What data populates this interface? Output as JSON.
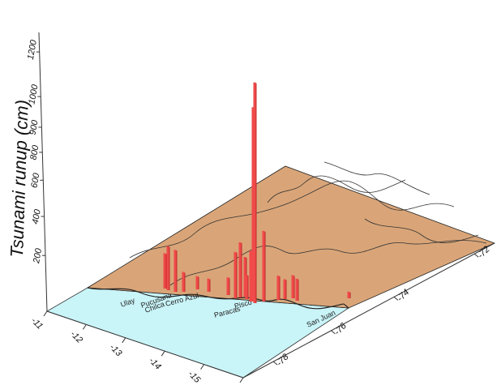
{
  "chart_data": {
    "type": "bar",
    "title": "",
    "zlabel": "Tsunami runup (cm)",
    "zlim": [
      0,
      1200
    ],
    "z_ticks": [
      "200",
      "400",
      "600",
      "800",
      "900",
      "1000",
      "1200"
    ],
    "lat_ticks": [
      "-11",
      "-12",
      "-13",
      "-14",
      "-15",
      "-16"
    ],
    "lon_ticks": [
      "-72",
      "-74",
      "-76",
      "-78"
    ],
    "colors": {
      "land": "#D9A578",
      "sea": "#C9F4F8",
      "bar": "#F04A4A",
      "bar_dark": "#C02828"
    },
    "place_labels": [
      "Ulay",
      "Pucusana",
      "Chilca",
      "Cerro Azul",
      "Pisco",
      "Paracas",
      "San Juan"
    ],
    "bars": [
      {
        "lon": -77.0,
        "lat": -12.0,
        "runup": 160
      },
      {
        "lon": -76.9,
        "lat": -12.2,
        "runup": 200
      },
      {
        "lon": -76.8,
        "lat": -12.4,
        "runup": 190
      },
      {
        "lon": -76.6,
        "lat": -12.6,
        "runup": 90
      },
      {
        "lon": -76.5,
        "lat": -12.9,
        "runup": 60
      },
      {
        "lon": -76.4,
        "lat": -13.1,
        "runup": 60
      },
      {
        "lon": -76.2,
        "lat": -13.5,
        "runup": 80
      },
      {
        "lon": -76.15,
        "lat": -13.65,
        "runup": 210
      },
      {
        "lon": -76.05,
        "lat": -13.8,
        "runup": 250
      },
      {
        "lon": -76.0,
        "lat": -13.85,
        "runup": 180
      },
      {
        "lon": -75.95,
        "lat": -13.95,
        "runup": 110
      },
      {
        "lon": -75.9,
        "lat": -14.0,
        "runup": 230
      },
      {
        "lon": -75.85,
        "lat": -14.05,
        "runup": 880
      },
      {
        "lon": -75.8,
        "lat": -14.1,
        "runup": 1000
      },
      {
        "lon": -75.75,
        "lat": -14.15,
        "runup": 320
      },
      {
        "lon": -75.7,
        "lat": -14.3,
        "runup": 110
      },
      {
        "lon": -75.55,
        "lat": -14.5,
        "runup": 90
      },
      {
        "lon": -75.45,
        "lat": -14.6,
        "runup": 105
      },
      {
        "lon": -75.35,
        "lat": -14.7,
        "runup": 100
      },
      {
        "lon": -74.0,
        "lat": -16.0,
        "runup": 30
      }
    ]
  }
}
